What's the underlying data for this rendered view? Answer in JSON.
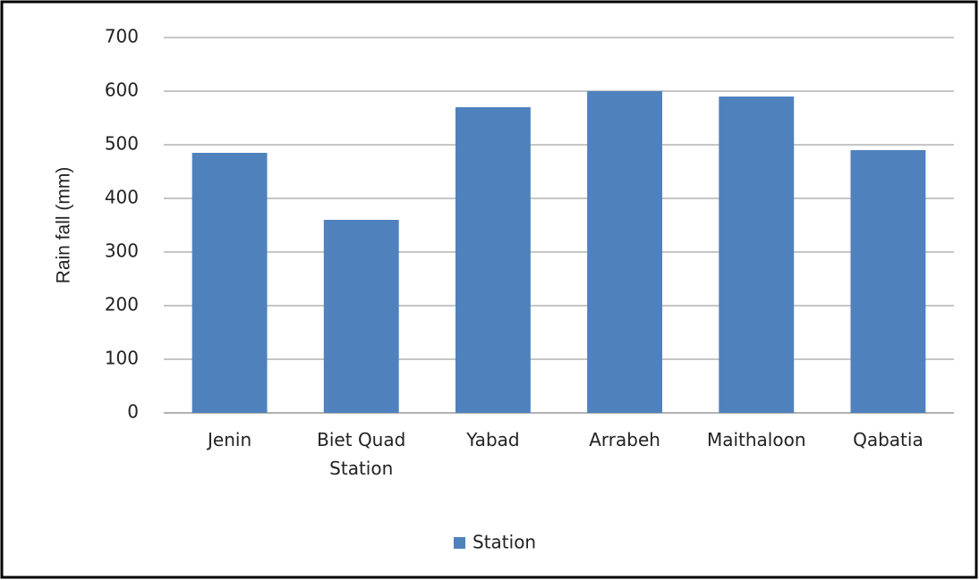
{
  "chart_data": {
    "type": "bar",
    "y_label": "Rain fall (mm)",
    "categories": [
      "Jenin",
      "Biet Quad Station",
      "Yabad",
      "Arrabeh",
      "Maithaloon",
      "Qabatia"
    ],
    "series": [
      {
        "name": "Station",
        "color": "#4f81bd",
        "values": [
          485,
          360,
          570,
          600,
          590,
          490
        ]
      }
    ],
    "ylim": [
      0,
      700
    ],
    "yticks": [
      0,
      100,
      200,
      300,
      400,
      500,
      600,
      700
    ],
    "grid": true,
    "legend": "bottom"
  }
}
